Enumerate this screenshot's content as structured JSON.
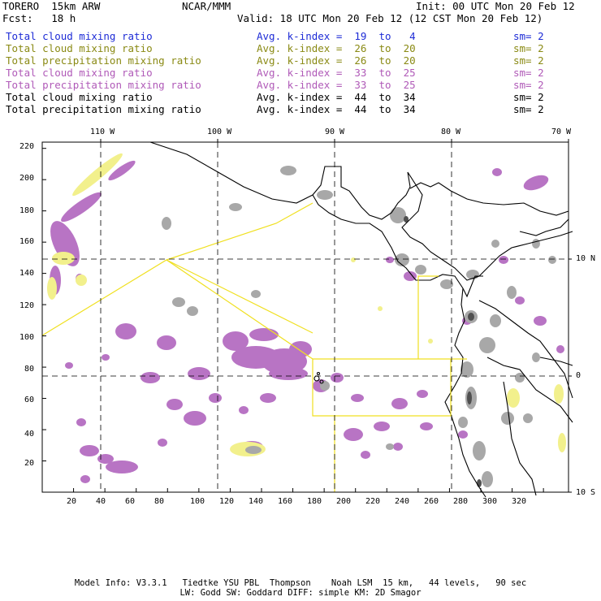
{
  "header": {
    "model_name": "TORERO  15km ARW",
    "center": "NCAR/MMM",
    "init": "Init: 00 UTC Mon 20 Feb 12",
    "fcst": "Fcst:   18 h",
    "valid": "Valid: 18 UTC Mon 20 Feb 12 (12 CST Mon 20 Feb 12)"
  },
  "legend": [
    {
      "field": "Total cloud mixing ratio",
      "stat": "Avg. k-index =  19  to   4",
      "sm": "sm= 2",
      "color": "#1d2bd6"
    },
    {
      "field": "Total cloud mixing ratio",
      "stat": "Avg. k-index =  26  to  20",
      "sm": "sm= 2",
      "color": "#8a8a14"
    },
    {
      "field": "Total precipitation mixing ratio",
      "stat": "Avg. k-index =  26  to  20",
      "sm": "sm= 2",
      "color": "#8a8a14"
    },
    {
      "field": "Total cloud mixing ratio",
      "stat": "Avg. k-index =  33  to  25",
      "sm": "sm= 2",
      "color": "#b05ab8"
    },
    {
      "field": "Total precipitation mixing ratio",
      "stat": "Avg. k-index =  33  to  25",
      "sm": "sm= 2",
      "color": "#b05ab8"
    },
    {
      "field": "Total cloud mixing ratio",
      "stat": "Avg. k-index =  44  to  34",
      "sm": "sm= 2",
      "color": "#000000"
    },
    {
      "field": "Total precipitation mixing ratio",
      "stat": "Avg. k-index =  44  to  34",
      "sm": "sm= 2",
      "color": "#000000"
    }
  ],
  "map": {
    "x_ticks": [
      "20",
      "40",
      "60",
      "80",
      "100",
      "120",
      "140",
      "160",
      "180",
      "200",
      "220",
      "240",
      "260",
      "280",
      "300",
      "320"
    ],
    "y_ticks": [
      "20",
      "40",
      "60",
      "80",
      "100",
      "120",
      "140",
      "160",
      "180",
      "200",
      "220"
    ],
    "lon_labels": [
      "110 W",
      "100 W",
      "90 W",
      "80 W",
      "70 W"
    ],
    "lat_labels": [
      "10 N",
      "0",
      "10 S"
    ],
    "colors": {
      "grey": "#a8a8a8",
      "purple": "#b874c4",
      "yellow": "#f2f08c",
      "coast": "#000000",
      "box": "#f0e020",
      "grid": "#000000"
    }
  },
  "footer": {
    "line1": "Model Info: V3.3.1   Tiedtke YSU PBL  Thompson    Noah LSM  15 km,   44 levels,   90 sec",
    "line2": "LW: Godd SW: Goddard DIFF: simple KM: 2D Smagor"
  }
}
